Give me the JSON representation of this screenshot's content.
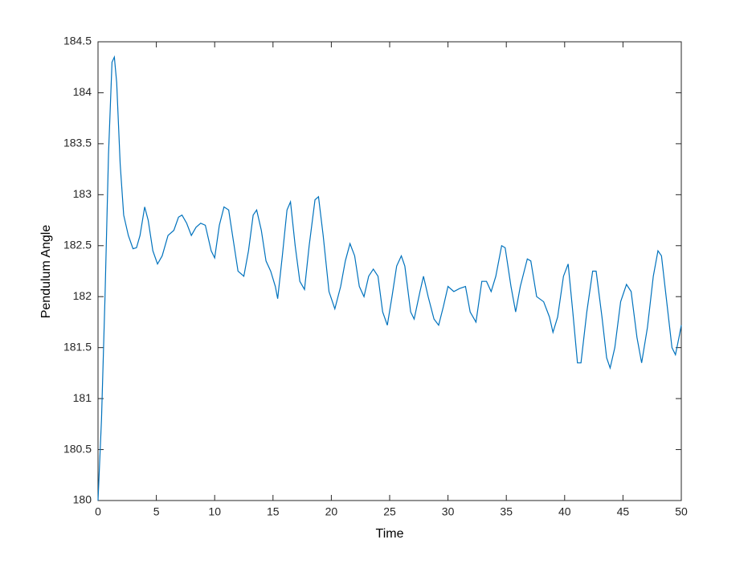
{
  "chart_data": {
    "type": "line",
    "xlabel": "Time",
    "ylabel": "Pendulum Angle",
    "color": "#0072bd",
    "x": [
      0,
      0.3,
      0.6,
      0.9,
      1.2,
      1.4,
      1.6,
      1.9,
      2.2,
      2.6,
      3.0,
      3.3,
      3.6,
      4.0,
      4.3,
      4.7,
      5.1,
      5.5,
      6.0,
      6.5,
      6.9,
      7.2,
      7.6,
      8.0,
      8.4,
      8.8,
      9.2,
      9.7,
      10.0,
      10.4,
      10.8,
      11.2,
      11.6,
      12.0,
      12.5,
      12.9,
      13.3,
      13.6,
      14.0,
      14.4,
      14.8,
      15.2,
      15.4,
      15.8,
      16.2,
      16.5,
      16.9,
      17.3,
      17.7,
      18.1,
      18.6,
      18.9,
      19.3,
      19.8,
      20.3,
      20.8,
      21.2,
      21.6,
      22.0,
      22.4,
      22.8,
      23.2,
      23.6,
      24.0,
      24.4,
      24.8,
      25.2,
      25.6,
      26.0,
      26.3,
      26.8,
      27.1,
      27.6,
      27.9,
      28.3,
      28.8,
      29.2,
      29.6,
      30.0,
      30.5,
      31.0,
      31.5,
      31.9,
      32.4,
      32.9,
      33.3,
      33.7,
      34.1,
      34.6,
      34.9,
      35.4,
      35.8,
      36.2,
      36.8,
      37.1,
      37.6,
      38.2,
      38.7,
      39.0,
      39.4,
      39.9,
      40.3,
      40.7,
      41.1,
      41.4,
      41.9,
      42.4,
      42.7,
      43.2,
      43.6,
      43.9,
      44.3,
      44.8,
      45.3,
      45.7,
      46.2,
      46.6,
      47.1,
      47.6,
      48.0,
      48.3,
      48.7,
      49.2,
      49.5,
      49.8,
      50.0
    ],
    "values": [
      180.0,
      180.8,
      182.0,
      183.4,
      184.3,
      184.35,
      184.1,
      183.3,
      182.8,
      182.6,
      182.47,
      182.48,
      182.6,
      182.88,
      182.75,
      182.45,
      182.32,
      182.4,
      182.6,
      182.65,
      182.78,
      182.8,
      182.72,
      182.6,
      182.68,
      182.72,
      182.7,
      182.45,
      182.38,
      182.7,
      182.88,
      182.85,
      182.55,
      182.25,
      182.2,
      182.45,
      182.8,
      182.85,
      182.65,
      182.35,
      182.25,
      182.1,
      181.98,
      182.4,
      182.85,
      182.93,
      182.5,
      182.15,
      182.07,
      182.5,
      182.95,
      182.98,
      182.6,
      182.05,
      181.88,
      182.1,
      182.35,
      182.52,
      182.4,
      182.1,
      182.0,
      182.2,
      182.27,
      182.2,
      181.85,
      181.72,
      182.0,
      182.3,
      182.4,
      182.3,
      181.85,
      181.78,
      182.05,
      182.2,
      182.0,
      181.78,
      181.72,
      181.9,
      182.1,
      182.05,
      182.08,
      182.1,
      181.85,
      181.75,
      182.15,
      182.15,
      182.05,
      182.2,
      182.5,
      182.48,
      182.1,
      181.85,
      182.1,
      182.37,
      182.35,
      182.0,
      181.95,
      181.8,
      181.65,
      181.8,
      182.2,
      182.32,
      181.85,
      181.35,
      181.35,
      181.85,
      182.25,
      182.25,
      181.8,
      181.4,
      181.3,
      181.5,
      181.95,
      182.12,
      182.05,
      181.6,
      181.35,
      181.7,
      182.2,
      182.45,
      182.4,
      182.0,
      181.5,
      181.43,
      181.6,
      181.72
    ],
    "xlim": [
      0,
      50
    ],
    "xticks": [
      0,
      5,
      10,
      15,
      20,
      25,
      30,
      35,
      40,
      45,
      50
    ],
    "ylim": [
      180,
      184.5
    ],
    "yticks": [
      180,
      180.5,
      181,
      181.5,
      182,
      182.5,
      183,
      183.5,
      184,
      184.5
    ]
  }
}
